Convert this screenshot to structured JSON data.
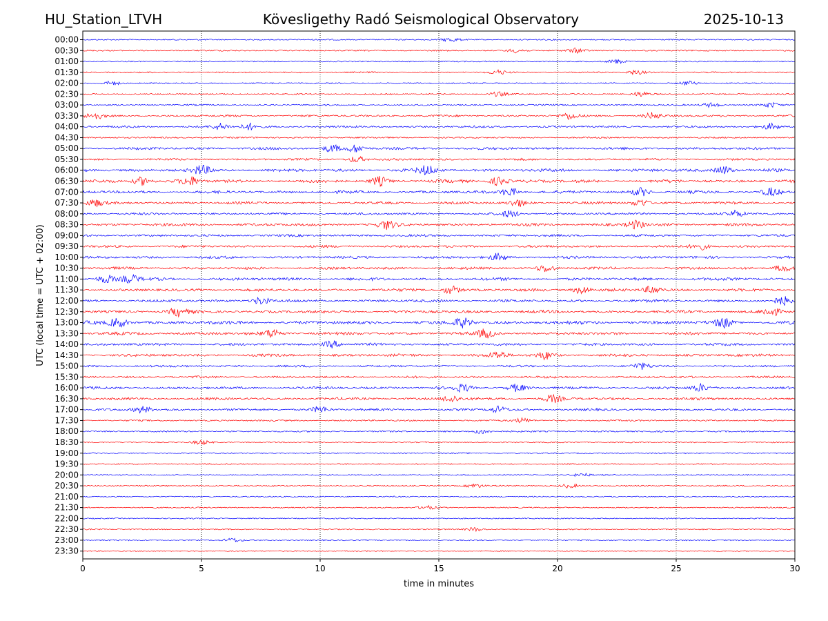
{
  "chart_data": {
    "type": "line",
    "title_left": "HU_Station_LTVH",
    "title": "Kövesligethy Radó Seismological Observatory",
    "title_right": "2025-10-13",
    "xlabel": "time in minutes",
    "ylabel": "UTC (local time = UTC + 02:00)",
    "xlim": [
      0,
      30
    ],
    "x_ticks": [
      "0",
      "5",
      "10",
      "15",
      "20",
      "25",
      "30"
    ],
    "x_gridlines": [
      5,
      10,
      15,
      20,
      25
    ],
    "grid": "x-dotted",
    "series_colors": [
      "#0000ff",
      "#ff0000"
    ],
    "rows": [
      {
        "label": "00:00",
        "activity": 0.15,
        "bursts": [
          15.5
        ]
      },
      {
        "label": "00:30",
        "activity": 0.2,
        "bursts": [
          18.3,
          20.8
        ]
      },
      {
        "label": "01:00",
        "activity": 0.15,
        "bursts": [
          22.5
        ]
      },
      {
        "label": "01:30",
        "activity": 0.2,
        "bursts": [
          17.5,
          23.3
        ]
      },
      {
        "label": "02:00",
        "activity": 0.15,
        "bursts": [
          1.2,
          25.5
        ]
      },
      {
        "label": "02:30",
        "activity": 0.2,
        "bursts": [
          17.5,
          23.5
        ]
      },
      {
        "label": "03:00",
        "activity": 0.25,
        "bursts": [
          26.5,
          29.0
        ]
      },
      {
        "label": "03:30",
        "activity": 0.45,
        "bursts": [
          0.5,
          20.5,
          24.0
        ]
      },
      {
        "label": "04:00",
        "activity": 0.45,
        "bursts": [
          5.8,
          7.0,
          29.0
        ]
      },
      {
        "label": "04:30",
        "activity": 0.25,
        "bursts": []
      },
      {
        "label": "05:00",
        "activity": 0.6,
        "bursts": [
          10.5,
          11.5
        ]
      },
      {
        "label": "05:30",
        "activity": 0.45,
        "bursts": [
          11.5
        ]
      },
      {
        "label": "06:00",
        "activity": 0.8,
        "bursts": [
          5.0,
          14.5,
          27.0
        ]
      },
      {
        "label": "06:30",
        "activity": 0.8,
        "bursts": [
          2.5,
          4.5,
          12.5,
          17.5
        ]
      },
      {
        "label": "07:00",
        "activity": 0.7,
        "bursts": [
          18.0,
          23.5,
          29.0
        ]
      },
      {
        "label": "07:30",
        "activity": 0.6,
        "bursts": [
          0.5,
          18.3,
          23.5
        ]
      },
      {
        "label": "08:00",
        "activity": 0.5,
        "bursts": [
          18.0,
          27.5
        ]
      },
      {
        "label": "08:30",
        "activity": 0.7,
        "bursts": [
          12.8,
          23.3
        ]
      },
      {
        "label": "09:00",
        "activity": 0.5,
        "bursts": []
      },
      {
        "label": "09:30",
        "activity": 0.55,
        "bursts": [
          26.0
        ]
      },
      {
        "label": "10:00",
        "activity": 0.6,
        "bursts": [
          17.5
        ]
      },
      {
        "label": "10:30",
        "activity": 0.6,
        "bursts": [
          19.5,
          29.5
        ]
      },
      {
        "label": "11:00",
        "activity": 0.75,
        "bursts": [
          1.0,
          2.0
        ]
      },
      {
        "label": "11:30",
        "activity": 0.7,
        "bursts": [
          15.5,
          21.0,
          24.0
        ]
      },
      {
        "label": "12:00",
        "activity": 0.65,
        "bursts": [
          7.5,
          29.5
        ]
      },
      {
        "label": "12:30",
        "activity": 0.75,
        "bursts": [
          4.0,
          29.0
        ]
      },
      {
        "label": "13:00",
        "activity": 0.9,
        "bursts": [
          1.5,
          16.0,
          27.0
        ]
      },
      {
        "label": "13:30",
        "activity": 0.75,
        "bursts": [
          8.0,
          17.0
        ]
      },
      {
        "label": "14:00",
        "activity": 0.6,
        "bursts": [
          10.5
        ]
      },
      {
        "label": "14:30",
        "activity": 0.65,
        "bursts": [
          17.5,
          19.5
        ]
      },
      {
        "label": "15:00",
        "activity": 0.45,
        "bursts": [
          23.5
        ]
      },
      {
        "label": "15:30",
        "activity": 0.5,
        "bursts": []
      },
      {
        "label": "16:00",
        "activity": 0.6,
        "bursts": [
          16.0,
          18.3,
          26.0
        ]
      },
      {
        "label": "16:30",
        "activity": 0.6,
        "bursts": [
          15.5,
          19.8
        ]
      },
      {
        "label": "17:00",
        "activity": 0.5,
        "bursts": [
          2.5,
          10.0,
          17.5
        ]
      },
      {
        "label": "17:30",
        "activity": 0.25,
        "bursts": [
          18.5
        ]
      },
      {
        "label": "18:00",
        "activity": 0.25,
        "bursts": [
          16.8
        ]
      },
      {
        "label": "18:30",
        "activity": 0.15,
        "bursts": [
          5.0
        ]
      },
      {
        "label": "19:00",
        "activity": 0.12,
        "bursts": []
      },
      {
        "label": "19:30",
        "activity": 0.12,
        "bursts": []
      },
      {
        "label": "20:00",
        "activity": 0.1,
        "bursts": [
          21.0
        ]
      },
      {
        "label": "20:30",
        "activity": 0.15,
        "bursts": [
          16.5,
          20.5
        ]
      },
      {
        "label": "21:00",
        "activity": 0.1,
        "bursts": []
      },
      {
        "label": "21:30",
        "activity": 0.12,
        "bursts": [
          14.5
        ]
      },
      {
        "label": "22:00",
        "activity": 0.1,
        "bursts": []
      },
      {
        "label": "22:30",
        "activity": 0.12,
        "bursts": [
          16.5
        ]
      },
      {
        "label": "23:00",
        "activity": 0.15,
        "bursts": [
          6.3
        ]
      },
      {
        "label": "23:30",
        "activity": 0.08,
        "bursts": []
      }
    ]
  }
}
